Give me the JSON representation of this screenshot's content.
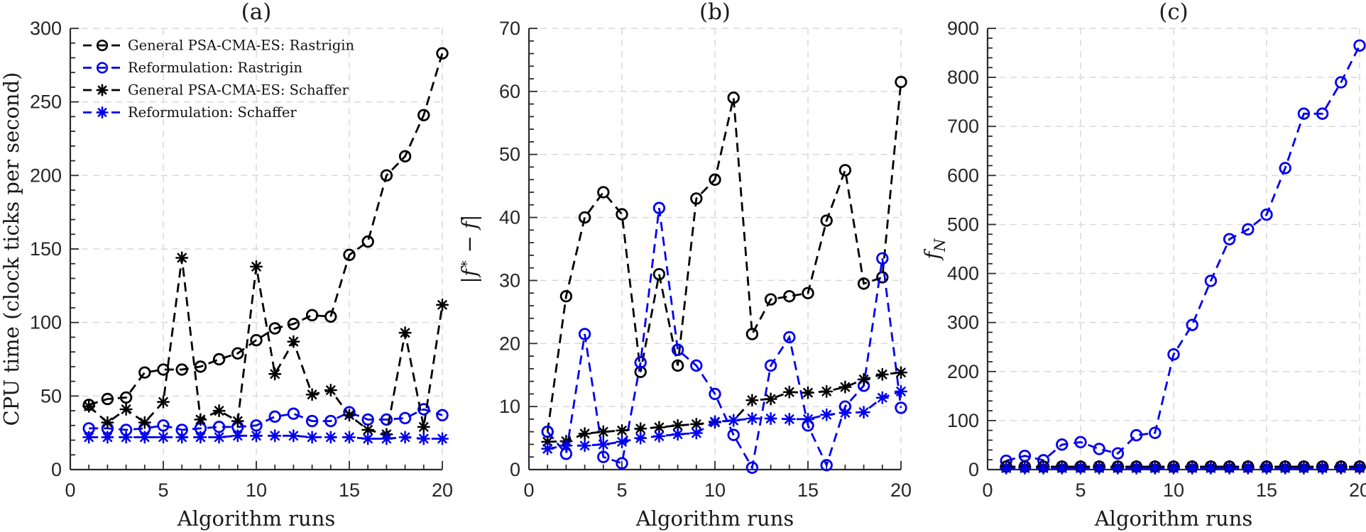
{
  "figure": {
    "background": "#ffffff",
    "axis_color": "#2b2b2b",
    "grid_color": "#d9d9d9",
    "tick_label_color": "#262626",
    "series_colors": {
      "black": "#000000",
      "blue": "#0000ee"
    }
  },
  "chart_data": [
    {
      "id": "a",
      "type": "line",
      "title": "(a)",
      "xlabel": "Algorithm runs",
      "ylabel": "CPU time (clock ticks per second)",
      "xlim": [
        0,
        20
      ],
      "ylim": [
        0,
        300
      ],
      "xticks": [
        0,
        5,
        10,
        15,
        20
      ],
      "yticks": [
        0,
        50,
        100,
        150,
        200,
        250,
        300
      ],
      "minor_x": 1,
      "minor_y": 10,
      "grid": true,
      "legend": true,
      "legend_position": "top-left",
      "x": [
        1,
        2,
        3,
        4,
        5,
        6,
        7,
        8,
        9,
        10,
        11,
        12,
        13,
        14,
        15,
        16,
        17,
        18,
        19,
        20
      ],
      "series": [
        {
          "name": "General PSA-CMA-ES: Rastrigin",
          "color": "#000000",
          "marker": "circle",
          "values": [
            44,
            48,
            49,
            66,
            68,
            68,
            70,
            75,
            79,
            88,
            96,
            99,
            105,
            104,
            146,
            155,
            200,
            213,
            241,
            283
          ]
        },
        {
          "name": "Reformulation: Rastrigin",
          "color": "#0000ee",
          "marker": "circle",
          "values": [
            28,
            28,
            27,
            28,
            30,
            27,
            28,
            29,
            29,
            30,
            36,
            38,
            33,
            33,
            39,
            34,
            34,
            35,
            41,
            37
          ]
        },
        {
          "name": "General PSA-CMA-ES: Schaffer",
          "color": "#000000",
          "marker": "asterisk",
          "values": [
            43,
            32,
            41,
            32,
            46,
            144,
            34,
            40,
            33,
            138,
            65,
            87,
            51,
            54,
            37,
            27,
            24,
            93,
            29,
            112
          ]
        },
        {
          "name": "Reformulation: Schaffer",
          "color": "#0000ee",
          "marker": "asterisk",
          "values": [
            22,
            22,
            22,
            22,
            22,
            22,
            22,
            22,
            23,
            23,
            23,
            23,
            22,
            22,
            22,
            21,
            21,
            22,
            21,
            21
          ]
        }
      ]
    },
    {
      "id": "b",
      "type": "line",
      "title": "(b)",
      "xlabel": "Algorithm runs",
      "ylabel": "|f* − f|",
      "xlim": [
        0,
        20
      ],
      "ylim": [
        0,
        70
      ],
      "xticks": [
        0,
        5,
        10,
        15,
        20
      ],
      "yticks": [
        0,
        10,
        20,
        30,
        40,
        50,
        60,
        70
      ],
      "minor_x": 1,
      "minor_y": 2,
      "grid": true,
      "legend": false,
      "x": [
        1,
        2,
        3,
        4,
        5,
        6,
        7,
        8,
        9,
        10,
        11,
        12,
        13,
        14,
        15,
        16,
        17,
        18,
        19,
        20
      ],
      "series": [
        {
          "name": "General PSA-CMA-ES: Rastrigin",
          "color": "#000000",
          "marker": "circle",
          "values": [
            6,
            27.5,
            40,
            44,
            40.5,
            15.5,
            31,
            16.5,
            43,
            46,
            59,
            21.5,
            27,
            27.5,
            28,
            39.5,
            47.5,
            29.5,
            30.5,
            61.5
          ]
        },
        {
          "name": "Reformulation: Rastrigin",
          "color": "#0000ee",
          "marker": "circle",
          "values": [
            6,
            2.5,
            21.5,
            2,
            1,
            17,
            41.5,
            19,
            16.5,
            12,
            5.5,
            0.3,
            16.5,
            21,
            7,
            0.7,
            10,
            13.3,
            33.5,
            9.8
          ]
        },
        {
          "name": "General PSA-CMA-ES: Schaffer",
          "color": "#000000",
          "marker": "asterisk",
          "values": [
            4.4,
            4.5,
            5.7,
            6,
            6.2,
            6.5,
            6.7,
            7,
            7.2,
            7.5,
            7.8,
            11,
            11.2,
            12.3,
            12.2,
            12.4,
            13.1,
            14.3,
            15.1,
            15.4
          ]
        },
        {
          "name": "Reformulation: Schaffer",
          "color": "#0000ee",
          "marker": "asterisk",
          "values": [
            3.3,
            3.8,
            3.8,
            4,
            4.4,
            5,
            5.3,
            5.6,
            5.8,
            7.6,
            7.8,
            8.1,
            8.1,
            8,
            8,
            8.7,
            9,
            9.1,
            11.4,
            12.4
          ]
        }
      ]
    },
    {
      "id": "c",
      "type": "line",
      "title": "(c)",
      "xlabel": "Algorithm runs",
      "ylabel": "fN",
      "xlim": [
        0,
        20
      ],
      "ylim": [
        0,
        900
      ],
      "xticks": [
        0,
        5,
        10,
        15,
        20
      ],
      "yticks": [
        0,
        100,
        200,
        300,
        400,
        500,
        600,
        700,
        800,
        900
      ],
      "minor_x": 1,
      "minor_y": 20,
      "grid": true,
      "legend": false,
      "x": [
        1,
        2,
        3,
        4,
        5,
        6,
        7,
        8,
        9,
        10,
        11,
        12,
        13,
        14,
        15,
        16,
        17,
        18,
        19,
        20
      ],
      "series": [
        {
          "name": "General PSA-CMA-ES: Rastrigin",
          "color": "#000000",
          "marker": "circle",
          "values": [
            6,
            6,
            6,
            6,
            6,
            6,
            6,
            6,
            6,
            6,
            6,
            6,
            6,
            6,
            6,
            6,
            6,
            6,
            6,
            6
          ]
        },
        {
          "name": "Reformulation: Rastrigin",
          "color": "#0000ee",
          "marker": "circle",
          "values": [
            18,
            28,
            19,
            51,
            56,
            42,
            33,
            70,
            75,
            235,
            295,
            385,
            470,
            490,
            520,
            615,
            726,
            726,
            790,
            865
          ]
        },
        {
          "name": "General PSA-CMA-ES: Schaffer",
          "color": "#000000",
          "marker": "asterisk",
          "values": [
            6,
            6,
            6,
            6,
            6,
            6,
            6,
            6,
            6,
            6,
            6,
            6,
            6,
            6,
            6,
            6,
            6,
            6,
            6,
            6
          ]
        },
        {
          "name": "Reformulation: Schaffer",
          "color": "#0000ee",
          "marker": "asterisk",
          "values": [
            3,
            3,
            3,
            3,
            3,
            3,
            3,
            3,
            3,
            3,
            3,
            3,
            3,
            3,
            3,
            3,
            3,
            3,
            3,
            3
          ]
        }
      ]
    }
  ]
}
